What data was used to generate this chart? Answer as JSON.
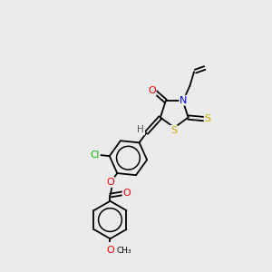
{
  "bg_color": "#ebebeb",
  "atom_colors": {
    "O": "#ff0000",
    "N": "#0000ff",
    "S": "#ccaa00",
    "Cl": "#00bb00",
    "C": "#000000",
    "H": "#555555"
  },
  "figsize": [
    3.0,
    3.0
  ],
  "dpi": 100
}
